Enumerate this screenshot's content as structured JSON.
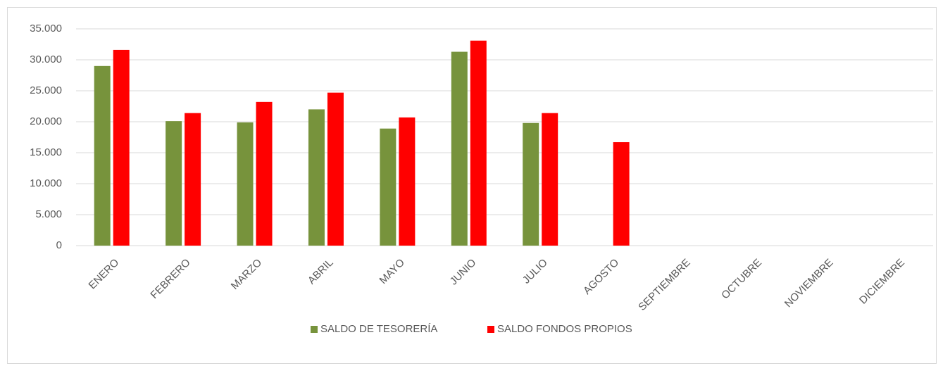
{
  "chart_data": {
    "type": "bar",
    "categories": [
      "ENERO",
      "FEBRERO",
      "MARZO",
      "ABRIL",
      "MAYO",
      "JUNIO",
      "JULIO",
      "AGOSTO",
      "SEPTIEMBRE",
      "OCTUBRE",
      "NOVIEMBRE",
      "DICIEMBRE"
    ],
    "series": [
      {
        "name": "SALDO DE TESORERÍA",
        "color": "#77933c",
        "values": [
          29000,
          20100,
          19900,
          22000,
          18900,
          31300,
          19800,
          null,
          null,
          null,
          null,
          null
        ]
      },
      {
        "name": "SALDO FONDOS PROPIOS",
        "color": "#ff0000",
        "values": [
          31600,
          21400,
          23200,
          24700,
          20700,
          33100,
          21400,
          16700,
          null,
          null,
          null,
          null
        ]
      }
    ],
    "ylim": [
      0,
      35000
    ],
    "yticks": [
      0,
      {
        "value": 5000,
        "label": "5.000"
      },
      {
        "value": 10000,
        "label": "10.000"
      },
      {
        "value": 15000,
        "label": "15.000"
      },
      {
        "value": 20000,
        "label": "20.000"
      },
      {
        "value": 25000,
        "label": "25.000"
      },
      {
        "value": 30000,
        "label": "30.000"
      },
      {
        "value": 35000,
        "label": "35.000"
      }
    ],
    "grid": true,
    "legend": "bottom"
  }
}
